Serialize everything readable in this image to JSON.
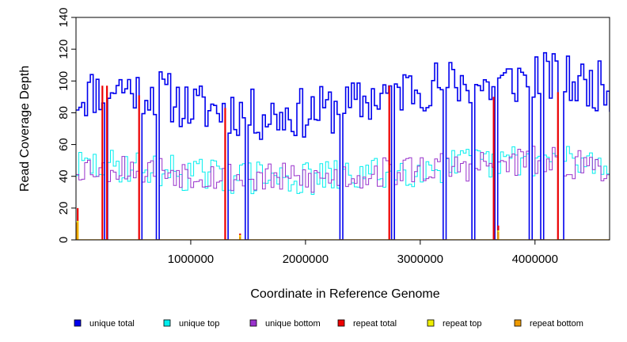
{
  "chart_data": {
    "type": "line",
    "title": "",
    "xlabel": "Coordinate in Reference Genome",
    "ylabel": "Read Coverage Depth",
    "xlim": [
      0,
      4650000
    ],
    "ylim": [
      0,
      140
    ],
    "x_ticks": [
      1000000,
      2000000,
      3000000,
      4000000
    ],
    "x_tick_labels": [
      "1000000",
      "2000000",
      "3000000",
      "4000000"
    ],
    "y_ticks": [
      0,
      20,
      40,
      60,
      80,
      100,
      120,
      140
    ],
    "y_tick_labels": [
      "0",
      "20",
      "40",
      "60",
      "80",
      "100",
      "120",
      "140"
    ],
    "grid": false,
    "legend_position": "bottom",
    "sample_step": 25000,
    "series": [
      {
        "key": "unique_total",
        "name": "unique total",
        "color": "#0000ee",
        "profile_x": [
          0,
          300000,
          700000,
          1000000,
          1300000,
          1600000,
          2000000,
          2400000,
          2700000,
          3000000,
          3300000,
          3600000,
          4000000,
          4400000,
          4650000
        ],
        "profile_y": [
          90,
          97,
          93,
          83,
          82,
          78,
          80,
          84,
          93,
          97,
          99,
          96,
          104,
          98,
          96
        ],
        "variation": 16,
        "drops": [
          [
            250000,
            0
          ],
          [
            550000,
            0
          ],
          [
            700000,
            0
          ],
          [
            1310000,
            0
          ],
          [
            1470000,
            0
          ],
          [
            2300000,
            0
          ],
          [
            2740000,
            0
          ],
          [
            3200000,
            0
          ],
          [
            3440000,
            0
          ],
          [
            3650000,
            0
          ],
          [
            3960000,
            0
          ],
          [
            4060000,
            0
          ],
          [
            4190000,
            0
          ],
          [
            4220000,
            0
          ]
        ]
      },
      {
        "key": "unique_top",
        "name": "unique top",
        "color": "#00eeee",
        "profile_x": [
          0,
          500000,
          1000000,
          1500000,
          2000000,
          2500000,
          3000000,
          3500000,
          4000000,
          4650000
        ],
        "profile_y": [
          46,
          47,
          41,
          39,
          38,
          41,
          45,
          48,
          51,
          48
        ],
        "variation": 11,
        "drops": [
          [
            250000,
            0
          ],
          [
            550000,
            0
          ],
          [
            700000,
            0
          ],
          [
            1310000,
            0
          ],
          [
            1470000,
            0
          ],
          [
            2300000,
            0
          ],
          [
            2740000,
            0
          ],
          [
            3200000,
            0
          ],
          [
            3440000,
            0
          ],
          [
            3650000,
            0
          ],
          [
            3960000,
            0
          ],
          [
            4060000,
            0
          ],
          [
            4190000,
            0
          ],
          [
            4220000,
            0
          ]
        ]
      },
      {
        "key": "unique_bottom",
        "name": "unique bottom",
        "color": "#9932cc",
        "profile_x": [
          0,
          500000,
          1000000,
          1500000,
          2000000,
          2500000,
          3000000,
          3500000,
          4000000,
          4650000
        ],
        "profile_y": [
          46,
          46,
          42,
          39,
          38,
          41,
          45,
          47,
          50,
          46
        ],
        "variation": 10,
        "drops": [
          [
            250000,
            0
          ],
          [
            550000,
            0
          ],
          [
            700000,
            0
          ],
          [
            1310000,
            0
          ],
          [
            1470000,
            0
          ],
          [
            2300000,
            0
          ],
          [
            2740000,
            0
          ],
          [
            3200000,
            0
          ],
          [
            3440000,
            0
          ],
          [
            3650000,
            0
          ],
          [
            3960000,
            0
          ],
          [
            4060000,
            0
          ],
          [
            4190000,
            0
          ],
          [
            4220000,
            0
          ]
        ]
      },
      {
        "key": "repeat_total",
        "name": "repeat total",
        "color": "#ee0000",
        "spikes": [
          [
            15000,
            20
          ],
          [
            230000,
            97
          ],
          [
            270000,
            97
          ],
          [
            550000,
            91
          ],
          [
            1300000,
            83
          ],
          [
            1430000,
            4
          ],
          [
            2730000,
            97
          ],
          [
            3640000,
            90
          ],
          [
            3680000,
            9
          ],
          [
            4200000,
            93
          ]
        ]
      },
      {
        "key": "repeat_top",
        "name": "repeat top",
        "color": "#eeee00",
        "spikes": [
          [
            15000,
            12
          ],
          [
            1430000,
            3
          ],
          [
            3680000,
            6
          ]
        ]
      },
      {
        "key": "repeat_bottom",
        "name": "repeat bottom",
        "color": "#ee9a00",
        "spikes": [
          [
            10000,
            11
          ],
          [
            1430000,
            2
          ],
          [
            3680000,
            5
          ]
        ]
      }
    ]
  }
}
